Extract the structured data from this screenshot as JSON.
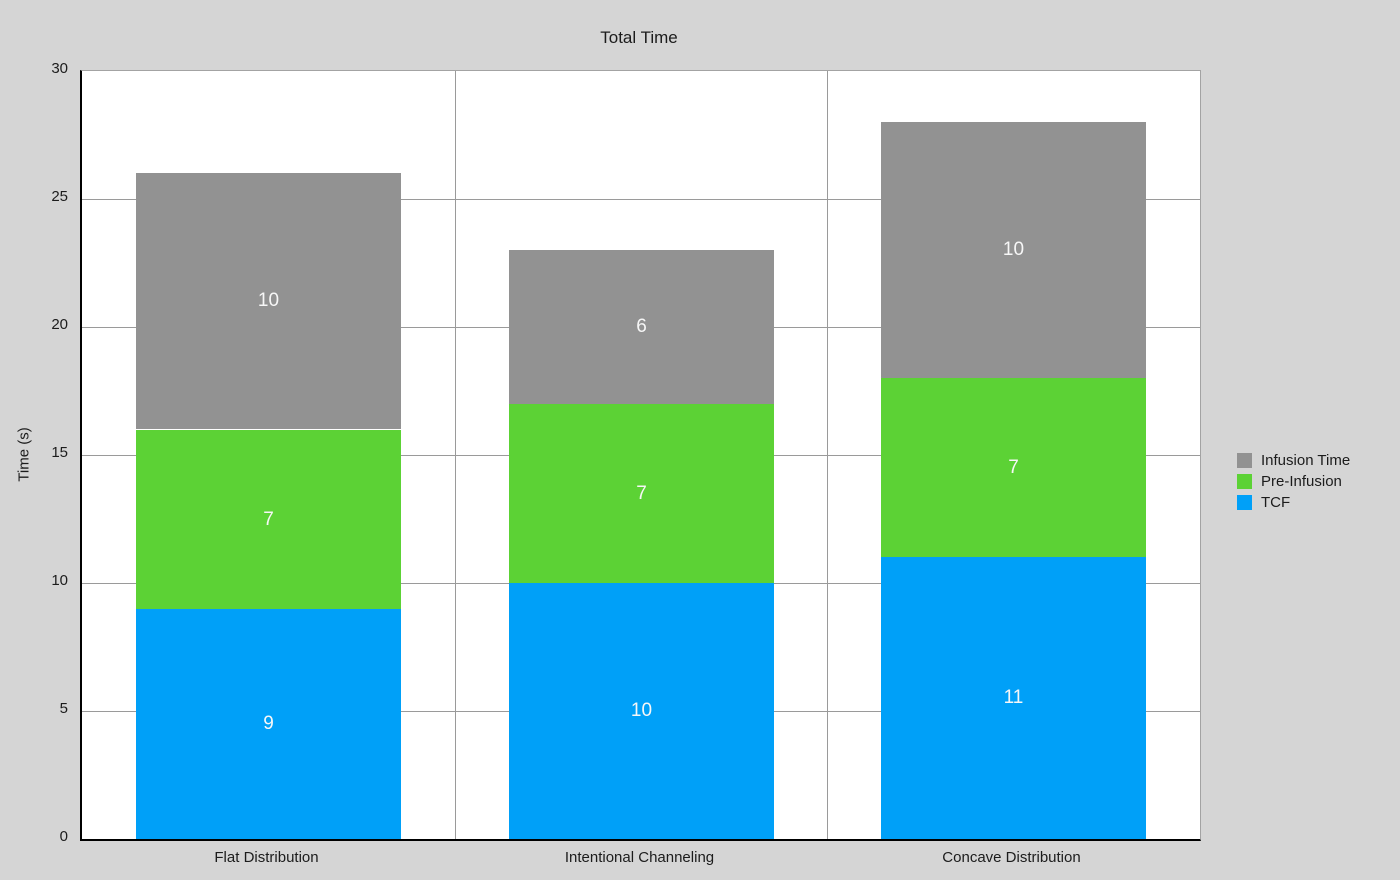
{
  "chart_data": {
    "type": "bar",
    "stacked": true,
    "title": "Total Time",
    "ylabel": "Time (s)",
    "xlabel": "",
    "ylim": [
      0,
      30
    ],
    "yticks": [
      0,
      5,
      10,
      15,
      20,
      25,
      30
    ],
    "grid": true,
    "legend_position": "right",
    "categories": [
      "Flat Distribution",
      "Intentional Channeling",
      "Concave Distribution"
    ],
    "series": [
      {
        "name": "TCF",
        "color": "#00A0F8",
        "values": [
          9,
          10,
          11
        ]
      },
      {
        "name": "Pre-Infusion",
        "color": "#5CD235",
        "values": [
          7,
          7,
          7
        ]
      },
      {
        "name": "Infusion Time",
        "color": "#929292",
        "values": [
          10,
          6,
          10
        ]
      }
    ],
    "legend_order_top_to_bottom": [
      "Infusion Time",
      "Pre-Infusion",
      "TCF"
    ]
  },
  "colors": {
    "page_background": "#d5d5d5",
    "plot_background": "#ffffff",
    "gridline": "#9a9a9a",
    "axis": "#000000",
    "text": "#1c1c1c",
    "bar_value_label": "#f7f7f7"
  }
}
